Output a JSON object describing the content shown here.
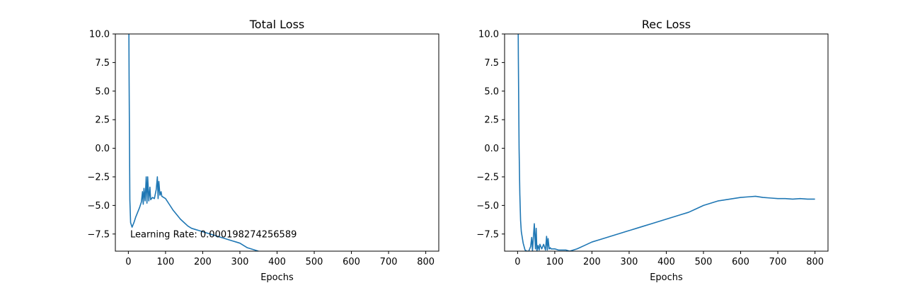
{
  "chart_data": [
    {
      "type": "line",
      "title": "Total Loss",
      "xlabel": "Epochs",
      "ylabel": "",
      "xlim": [
        -35,
        835
      ],
      "ylim": [
        -9,
        10
      ],
      "xticks": [
        0,
        100,
        200,
        300,
        400,
        500,
        600,
        700,
        800
      ],
      "xtick_labels": [
        "0",
        "100",
        "200",
        "300",
        "400",
        "500",
        "600",
        "700",
        "800"
      ],
      "yticks": [
        -7.5,
        -5.0,
        -2.5,
        0.0,
        2.5,
        5.0,
        7.5,
        10.0
      ],
      "ytick_labels": [
        "−7.5",
        "−5.0",
        "−2.5",
        "0.0",
        "2.5",
        "5.0",
        "7.5",
        "10.0"
      ],
      "grid": false,
      "annotation": {
        "text": "Learning Rate: 0.000198274256589",
        "x": 5,
        "y": -7.8
      },
      "series": [
        {
          "color": "#1f77b4",
          "x": [
            0,
            2,
            4,
            6,
            8,
            10,
            15,
            20,
            25,
            30,
            35,
            38,
            40,
            42,
            45,
            48,
            50,
            52,
            55,
            58,
            60,
            65,
            70,
            75,
            78,
            80,
            82,
            85,
            88,
            90,
            95,
            100,
            110,
            120,
            130,
            140,
            150,
            160,
            170,
            180,
            190,
            200,
            210,
            220,
            230,
            240,
            250,
            260,
            270,
            280,
            290,
            300,
            310,
            320,
            330,
            340,
            350
          ],
          "y": [
            20,
            6,
            -4.5,
            -6.5,
            -6.7,
            -6.9,
            -6.5,
            -6.0,
            -5.6,
            -5.2,
            -4.7,
            -3.8,
            -4.9,
            -3.5,
            -4.6,
            -2.5,
            -4.8,
            -2.5,
            -4.6,
            -3.4,
            -4.5,
            -4.3,
            -4.4,
            -3.6,
            -2.5,
            -4.4,
            -2.9,
            -4.1,
            -3.8,
            -4.2,
            -4.3,
            -4.4,
            -4.9,
            -5.4,
            -5.8,
            -6.2,
            -6.5,
            -6.8,
            -7.0,
            -7.1,
            -7.2,
            -7.3,
            -7.4,
            -7.5,
            -7.6,
            -7.7,
            -7.8,
            -7.9,
            -8.0,
            -8.1,
            -8.2,
            -8.3,
            -8.5,
            -8.7,
            -8.8,
            -8.9,
            -9.0
          ]
        }
      ]
    },
    {
      "type": "line",
      "title": "Rec Loss",
      "xlabel": "Epochs",
      "ylabel": "",
      "xlim": [
        -35,
        835
      ],
      "ylim": [
        -9,
        10
      ],
      "xticks": [
        0,
        100,
        200,
        300,
        400,
        500,
        600,
        700,
        800
      ],
      "xtick_labels": [
        "0",
        "100",
        "200",
        "300",
        "400",
        "500",
        "600",
        "700",
        "800"
      ],
      "yticks": [
        -7.5,
        -5.0,
        -2.5,
        0.0,
        2.5,
        5.0,
        7.5,
        10.0
      ],
      "ytick_labels": [
        "−7.5",
        "−5.0",
        "−2.5",
        "0.0",
        "2.5",
        "5.0",
        "7.5",
        "10.0"
      ],
      "grid": false,
      "series": [
        {
          "color": "#1f77b4",
          "x": [
            0,
            2,
            4,
            6,
            8,
            10,
            15,
            20,
            25,
            30,
            35,
            38,
            40,
            42,
            45,
            48,
            50,
            52,
            55,
            58,
            60,
            65,
            70,
            75,
            78,
            80,
            82,
            85,
            88,
            90,
            95,
            100,
            110,
            120,
            130,
            140,
            150,
            160,
            180,
            200,
            220,
            240,
            260,
            280,
            300,
            320,
            340,
            360,
            380,
            400,
            420,
            440,
            460,
            480,
            500,
            520,
            540,
            560,
            580,
            600,
            620,
            640,
            660,
            680,
            700,
            720,
            740,
            760,
            780,
            800
          ],
          "y": [
            20,
            8,
            0,
            -4,
            -6.3,
            -7.3,
            -8.3,
            -8.9,
            -9.0,
            -9.0,
            -8.6,
            -7.8,
            -9.0,
            -8.0,
            -6.6,
            -8.8,
            -7.0,
            -9.0,
            -8.5,
            -8.9,
            -8.4,
            -8.8,
            -8.4,
            -8.9,
            -7.7,
            -8.9,
            -7.9,
            -8.8,
            -8.7,
            -8.8,
            -8.8,
            -8.8,
            -8.9,
            -8.9,
            -8.9,
            -9.0,
            -8.9,
            -8.8,
            -8.5,
            -8.2,
            -8.0,
            -7.8,
            -7.6,
            -7.4,
            -7.2,
            -7.0,
            -6.8,
            -6.6,
            -6.4,
            -6.2,
            -6.0,
            -5.8,
            -5.6,
            -5.3,
            -5.0,
            -4.8,
            -4.6,
            -4.5,
            -4.4,
            -4.3,
            -4.25,
            -4.2,
            -4.3,
            -4.35,
            -4.4,
            -4.4,
            -4.45,
            -4.4,
            -4.45,
            -4.45
          ]
        }
      ]
    }
  ]
}
